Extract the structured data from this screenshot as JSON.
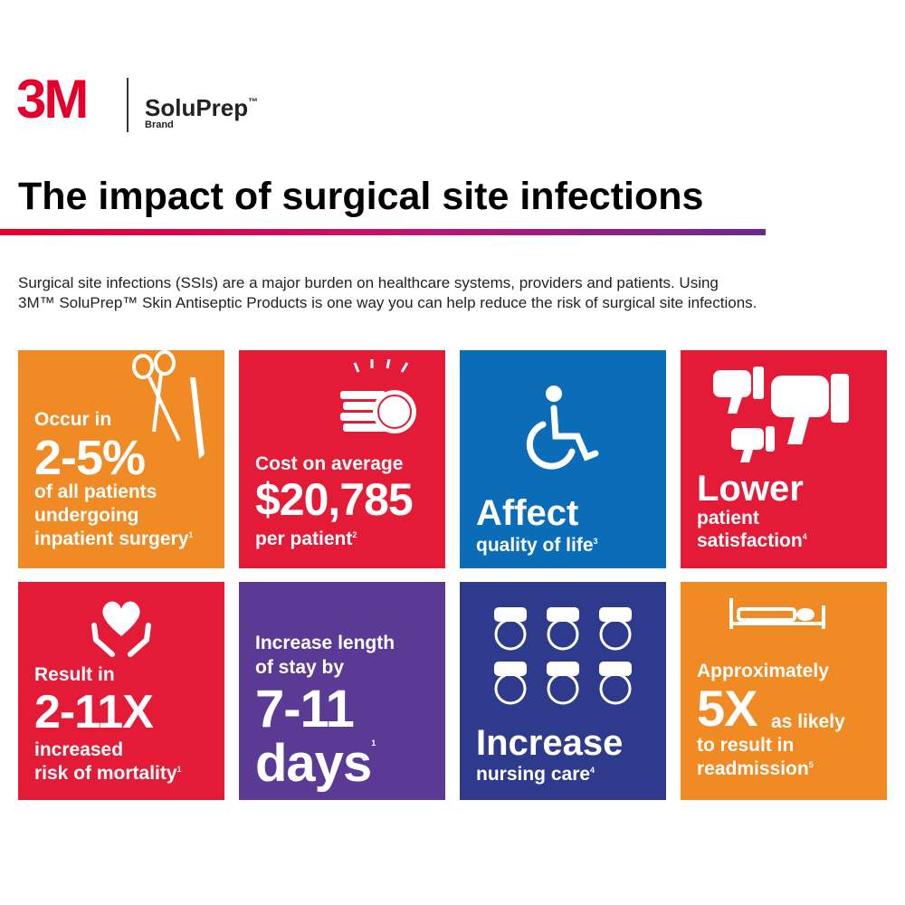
{
  "header": {
    "logo": "3M",
    "brand": "SoluPrep",
    "trademark": "™",
    "brand_sub": "Brand"
  },
  "title": "The impact of surgical site infections",
  "intro": [
    "Surgical site infections (SSIs) are a major burden on healthcare systems, providers and patients. Using",
    "3M™ SoluPrep™ Skin Antiseptic Products is one way you can help reduce the risk of surgical site infections."
  ],
  "tiles": [
    {
      "lines": [
        "Occur in",
        "2-5%",
        "of all patients",
        "undergoing",
        "inpatient surgery"
      ],
      "note": "1"
    },
    {
      "lines": [
        "Cost on average",
        "$20,785",
        "per patient"
      ],
      "note": "2"
    },
    {
      "lines": [
        "Affect",
        "quality of life"
      ],
      "note": "3"
    },
    {
      "lines": [
        "Lower",
        "patient",
        "satisfaction"
      ],
      "note": "4"
    },
    {
      "lines": [
        "Result in",
        "2-11X",
        "increased",
        "risk of mortality"
      ],
      "note": "1"
    },
    {
      "lines": [
        "Increase length",
        "of stay by",
        "7-11",
        "days"
      ],
      "note": "1"
    },
    {
      "lines": [
        "Increase",
        "nursing care"
      ],
      "note": "4"
    },
    {
      "lines": [
        "Approximately",
        "5X",
        "as likely",
        "to result in",
        "readmission"
      ],
      "note": "5"
    }
  ]
}
